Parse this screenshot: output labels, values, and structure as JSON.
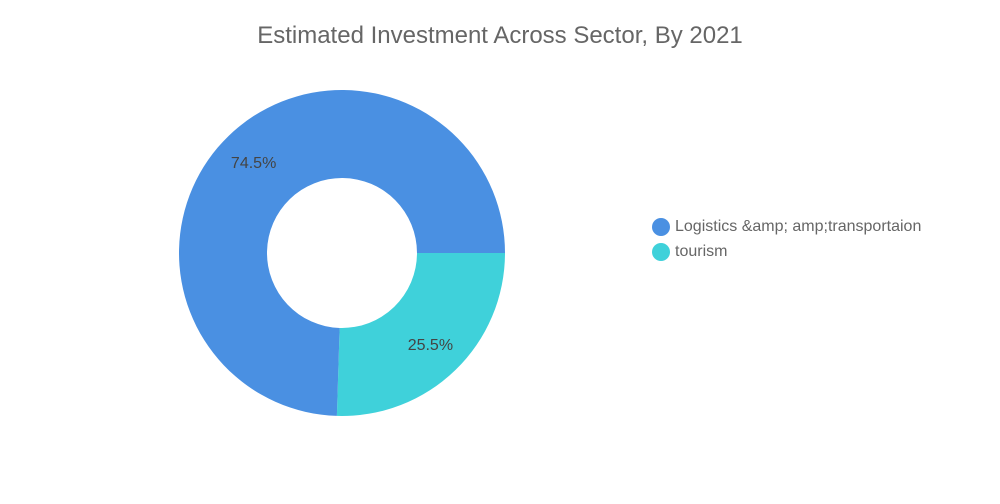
{
  "chart_data": {
    "type": "pie",
    "title": "Estimated Investment Across Sector, By 2021",
    "categories": [
      "Logistics &amp; amp;transportaion",
      "tourism"
    ],
    "values": [
      74.5,
      25.5
    ],
    "value_labels": [
      "74.5%",
      "25.5%"
    ],
    "colors": [
      "#4a90e2",
      "#3fd1da"
    ],
    "donut": true,
    "legend": "right"
  }
}
